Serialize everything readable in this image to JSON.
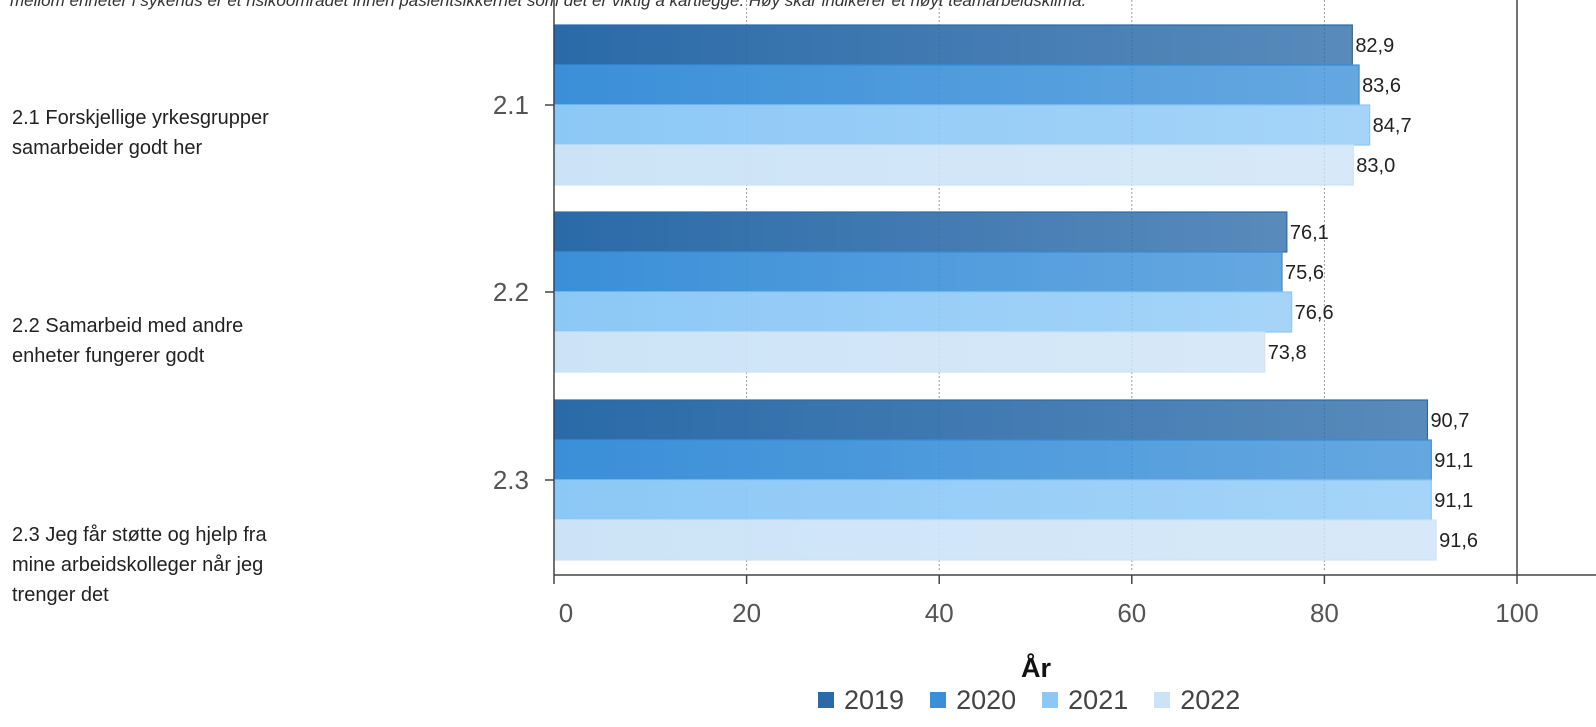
{
  "intro_text": "mellom enheter i sykehus er et risikoområdet innen pasientsikkerhet som det er viktig å kartlegge. Høy skår indikerer et høyt teamarbeidsklima.",
  "questions": [
    {
      "lines": [
        "2.1 Forskjellige yrkesgrupper",
        "samarbeider godt her"
      ]
    },
    {
      "lines": [
        "2.2 Samarbeid med andre",
        "enheter fungerer godt"
      ]
    },
    {
      "lines": [
        "2.3 Jeg får støtte og hjelp fra",
        "mine arbeidskolleger når jeg",
        "trenger det"
      ]
    }
  ],
  "chart_data": {
    "type": "bar",
    "orientation": "horizontal",
    "categories": [
      "2.1",
      "2.2",
      "2.3"
    ],
    "series": [
      {
        "name": "2019",
        "color": "#2a6aa8",
        "values": [
          82.9,
          76.1,
          90.7
        ]
      },
      {
        "name": "2020",
        "color": "#3a8fd8",
        "values": [
          83.6,
          75.6,
          91.1
        ]
      },
      {
        "name": "2021",
        "color": "#8cc8f6",
        "values": [
          84.7,
          76.6,
          91.1
        ]
      },
      {
        "name": "2022",
        "color": "#cce3f7",
        "values": [
          83.0,
          73.8,
          91.6
        ]
      }
    ],
    "data_labels": [
      [
        "82,9",
        "76,1",
        "90,7"
      ],
      [
        "83,6",
        "75,6",
        "91,1"
      ],
      [
        "84,7",
        "76,6",
        "91,1"
      ],
      [
        "83,0",
        "73,8",
        "91,6"
      ]
    ],
    "xlim": [
      0,
      100
    ],
    "xticks": [
      0,
      20,
      40,
      60,
      80,
      100
    ],
    "xtick_labels": [
      "0",
      "20",
      "40",
      "60",
      "80",
      "100"
    ],
    "xlabel": "År",
    "grid": true,
    "legend_position": "bottom"
  }
}
